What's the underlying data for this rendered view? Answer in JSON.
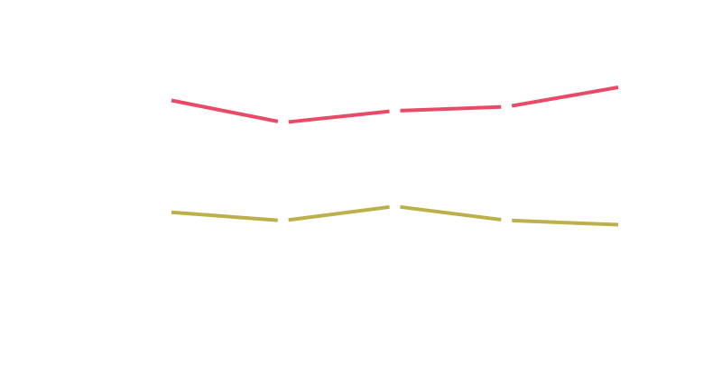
{
  "chart_data": {
    "type": "line",
    "title": "",
    "xlabel": "",
    "ylabel": "",
    "x": [
      1,
      2,
      3,
      4,
      5
    ],
    "ylim": [
      0,
      100
    ],
    "grid": false,
    "legend": "none",
    "series": [
      {
        "color": "#e84a67",
        "values": [
          75.4,
          68.8,
          72.3,
          73.5,
          79.3
        ]
      },
      {
        "color": "#bcb04a",
        "values": [
          42.0,
          39.5,
          43.8,
          39.6,
          38.3
        ]
      }
    ]
  }
}
